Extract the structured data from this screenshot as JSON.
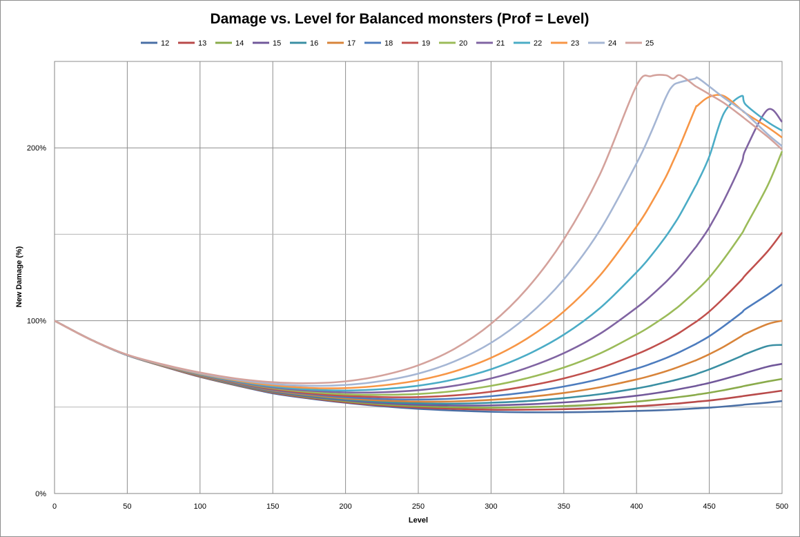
{
  "chart_data": {
    "type": "line",
    "title": "Damage vs. Level for Balanced monsters (Prof = Level)",
    "xlabel": "Level",
    "ylabel": "New Damage (%)",
    "xlim": [
      0,
      500
    ],
    "ylim": [
      0,
      250
    ],
    "x_ticks": [
      0,
      50,
      100,
      150,
      200,
      250,
      300,
      350,
      400,
      450,
      500
    ],
    "x_tick_labels": [
      "0",
      "50",
      "100",
      "150",
      "200",
      "250",
      "300",
      "350",
      "400",
      "450",
      "500"
    ],
    "y_ticks_labeled": [
      0,
      100,
      200
    ],
    "y_tick_labels": [
      "0%",
      "100%",
      "200%"
    ],
    "y_minor_gridlines": [
      50,
      150
    ],
    "grid": true,
    "legend_position": "top",
    "x": [
      0,
      25,
      50,
      75,
      100,
      125,
      150,
      175,
      200,
      225,
      250,
      275,
      300,
      325,
      350,
      375,
      400,
      410,
      420,
      425,
      430,
      440,
      442,
      450,
      460,
      472,
      475,
      490,
      500
    ],
    "series": [
      {
        "name": "12",
        "color": "#4a6fa5",
        "values": [
          100,
          89,
          80,
          73.5,
          67.5,
          62.5,
          58,
          55,
          52.5,
          50.5,
          49,
          48,
          47.3,
          47,
          47,
          47.3,
          47.8,
          48,
          48.3,
          48.5,
          48.7,
          49.2,
          49.3,
          49.7,
          50.3,
          51.2,
          51.5,
          52.6,
          53.5
        ]
      },
      {
        "name": "13",
        "color": "#b84a4a",
        "values": [
          100,
          89,
          80,
          73.5,
          67.6,
          62.7,
          58.4,
          55.3,
          52.8,
          51,
          49.8,
          49,
          48.5,
          48.5,
          48.8,
          49.4,
          50.5,
          51,
          51.6,
          51.9,
          52.2,
          53,
          53.2,
          53.8,
          54.8,
          56.2,
          56.6,
          58.3,
          59.5
        ]
      },
      {
        "name": "14",
        "color": "#8aab4b",
        "values": [
          100,
          89,
          80,
          73.6,
          67.8,
          62.9,
          58.7,
          55.7,
          53.3,
          51.6,
          50.5,
          49.9,
          49.7,
          50,
          50.6,
          51.6,
          53.2,
          54,
          54.9,
          55.4,
          55.9,
          57,
          57.3,
          58.3,
          59.8,
          61.8,
          62.4,
          64.8,
          66.3
        ]
      },
      {
        "name": "15",
        "color": "#71589a",
        "values": [
          100,
          89,
          80,
          73.6,
          67.9,
          63.1,
          59,
          56.1,
          53.9,
          52.3,
          51.3,
          50.9,
          51,
          51.6,
          52.7,
          54.3,
          56.6,
          57.7,
          59,
          59.7,
          60.5,
          62.1,
          62.5,
          64,
          66.2,
          69,
          69.8,
          73.4,
          75
        ]
      },
      {
        "name": "16",
        "color": "#3a8fa3",
        "values": [
          100,
          89,
          80,
          73.7,
          68,
          63.3,
          59.3,
          56.5,
          54.4,
          53,
          52.2,
          52,
          52.5,
          53.5,
          55.2,
          57.5,
          60.8,
          62.4,
          64.3,
          65.3,
          66.4,
          68.8,
          69.4,
          71.8,
          75.2,
          79.5,
          80.7,
          85.3,
          86
        ]
      },
      {
        "name": "17",
        "color": "#d8843a",
        "values": [
          100,
          89,
          80,
          73.7,
          68.1,
          63.5,
          59.6,
          57,
          55,
          53.8,
          53.2,
          53.3,
          54.2,
          55.8,
          58.2,
          61.5,
          66,
          68.2,
          70.7,
          72.1,
          73.6,
          76.8,
          77.5,
          80.6,
          85,
          91,
          92.5,
          98,
          100
        ]
      },
      {
        "name": "18",
        "color": "#4d7cbe",
        "values": [
          100,
          89,
          80,
          73.8,
          68.3,
          63.7,
          60,
          57.5,
          55.7,
          54.7,
          54.4,
          54.9,
          56.3,
          58.6,
          61.9,
          66.3,
          72.3,
          75.1,
          78.3,
          80.1,
          82,
          86.2,
          87.1,
          91,
          96.9,
          104.5,
          106.8,
          115,
          121
        ]
      },
      {
        "name": "19",
        "color": "#c0504d",
        "values": [
          100,
          89,
          80.1,
          73.8,
          68.4,
          64,
          60.4,
          58,
          56.5,
          55.8,
          55.8,
          56.8,
          58.9,
          62.2,
          66.6,
          72.6,
          80.6,
          84.3,
          88.5,
          90.8,
          93.3,
          98.9,
          100,
          105.3,
          113.2,
          123.5,
          126.5,
          140,
          151
        ]
      },
      {
        "name": "20",
        "color": "#9bbb59",
        "values": [
          100,
          89,
          80.1,
          73.9,
          68.6,
          64.3,
          60.9,
          58.7,
          57.4,
          57.1,
          57.6,
          59.3,
          62.3,
          66.8,
          72.9,
          81.1,
          92,
          97,
          102.6,
          105.7,
          109,
          116.5,
          118,
          125,
          135.7,
          150,
          154.5,
          178,
          198
        ]
      },
      {
        "name": "21",
        "color": "#8064a2",
        "values": [
          100,
          89,
          80.1,
          74,
          68.8,
          64.6,
          61.4,
          59.5,
          58.5,
          58.6,
          59.8,
          62.4,
          66.6,
          72.8,
          81.2,
          92.5,
          107.5,
          114.5,
          122.3,
          126.6,
          131.3,
          141.8,
          144,
          154,
          169.5,
          191,
          199,
          222,
          215
        ]
      },
      {
        "name": "22",
        "color": "#4bacc6",
        "values": [
          100,
          89,
          80.1,
          74.1,
          69,
          65,
          61.9,
          60.2,
          59.6,
          60.4,
          62.4,
          66.1,
          71.9,
          80.4,
          91.9,
          107.4,
          128,
          137.6,
          148.6,
          154.8,
          161.5,
          177,
          180.2,
          195,
          220,
          230,
          225,
          215,
          210
        ]
      },
      {
        "name": "23",
        "color": "#f79646",
        "values": [
          100,
          89,
          80.2,
          74.2,
          69.3,
          65.4,
          62.6,
          61.1,
          61,
          62.5,
          65.5,
          70.7,
          78.5,
          89.8,
          105.3,
          126.3,
          154.5,
          167.8,
          183,
          192,
          201.5,
          222,
          224.5,
          229.5,
          230,
          222,
          220,
          212,
          206
        ]
      },
      {
        "name": "24",
        "color": "#a5b6d4",
        "values": [
          100,
          89,
          80.2,
          74.4,
          69.6,
          65.9,
          63.4,
          62.3,
          62.8,
          65.1,
          69.4,
          76.5,
          87.2,
          102.6,
          123.9,
          152.6,
          191,
          209,
          229,
          236,
          238,
          240,
          240.5,
          235.5,
          229,
          222,
          220,
          208,
          201
        ]
      },
      {
        "name": "25",
        "color": "#d4a29c",
        "values": [
          100,
          89,
          80.3,
          74.6,
          70,
          66.5,
          64.4,
          63.8,
          64.9,
          68.3,
          74.2,
          83.8,
          98.2,
          118.8,
          147,
          185,
          236,
          241.5,
          242,
          240,
          242,
          236,
          235,
          231,
          226,
          218.5,
          216.5,
          206.5,
          199
        ]
      }
    ]
  }
}
